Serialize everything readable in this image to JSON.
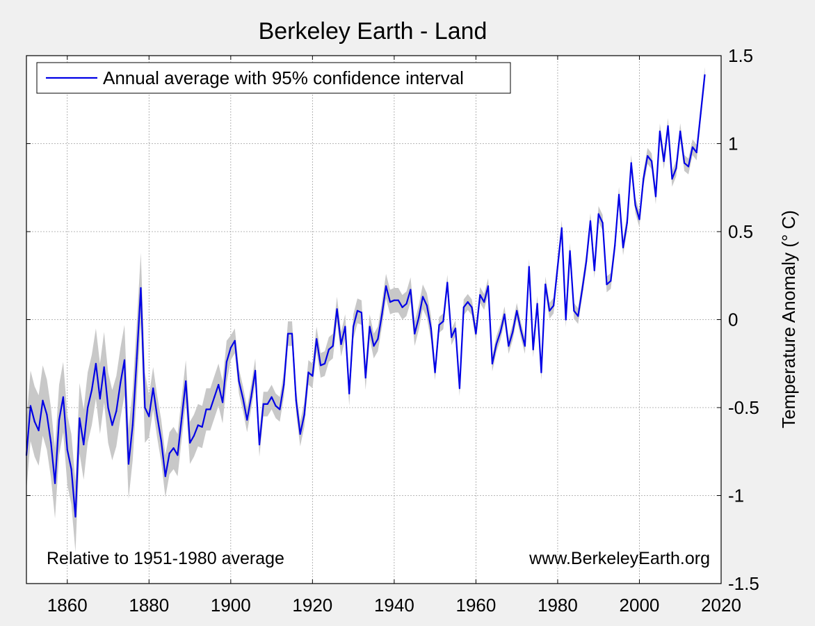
{
  "chart_data": {
    "type": "line",
    "title": "Berkeley Earth - Land",
    "xlabel": "",
    "ylabel": "Temperature Anomaly (° C)",
    "xlim": [
      1850,
      2020
    ],
    "ylim": [
      -1.5,
      1.5
    ],
    "x_ticks": [
      1860,
      1880,
      1900,
      1920,
      1940,
      1960,
      1980,
      2000,
      2020
    ],
    "y_ticks": [
      1.5,
      1,
      0.5,
      0,
      -0.5,
      -1,
      -1.5
    ],
    "x_tick_labels": [
      "1860",
      "1880",
      "1900",
      "1920",
      "1940",
      "1960",
      "1980",
      "2000",
      "2020"
    ],
    "y_tick_labels": [
      "1.5",
      "1",
      "0.5",
      "0",
      "-0.5",
      "-1",
      "-1.5"
    ],
    "grid": true,
    "legend": {
      "position": "top-left",
      "entries": [
        "Annual average with 95% confidence interval"
      ]
    },
    "annotations": {
      "bottom_left": "Relative to 1951-1980 average",
      "bottom_right": "www.BerkeleyEarth.org"
    },
    "colors": {
      "line": "#0000e6",
      "band": "#c8c8c8",
      "background": "#f0f0f0",
      "plot_bg": "#ffffff",
      "grid": "#a0a0a0"
    },
    "series": [
      {
        "name": "Annual average with 95% confidence interval",
        "x": [
          1850,
          1851,
          1852,
          1853,
          1854,
          1855,
          1856,
          1857,
          1858,
          1859,
          1860,
          1861,
          1862,
          1863,
          1864,
          1865,
          1866,
          1867,
          1868,
          1869,
          1870,
          1871,
          1872,
          1873,
          1874,
          1875,
          1876,
          1877,
          1878,
          1879,
          1880,
          1881,
          1882,
          1883,
          1884,
          1885,
          1886,
          1887,
          1888,
          1889,
          1890,
          1891,
          1892,
          1893,
          1894,
          1895,
          1896,
          1897,
          1898,
          1899,
          1900,
          1901,
          1902,
          1903,
          1904,
          1905,
          1906,
          1907,
          1908,
          1909,
          1910,
          1911,
          1912,
          1913,
          1914,
          1915,
          1916,
          1917,
          1918,
          1919,
          1920,
          1921,
          1922,
          1923,
          1924,
          1925,
          1926,
          1927,
          1928,
          1929,
          1930,
          1931,
          1932,
          1933,
          1934,
          1935,
          1936,
          1937,
          1938,
          1939,
          1940,
          1941,
          1942,
          1943,
          1944,
          1945,
          1946,
          1947,
          1948,
          1949,
          1950,
          1951,
          1952,
          1953,
          1954,
          1955,
          1956,
          1957,
          1958,
          1959,
          1960,
          1961,
          1962,
          1963,
          1964,
          1965,
          1966,
          1967,
          1968,
          1969,
          1970,
          1971,
          1972,
          1973,
          1974,
          1975,
          1976,
          1977,
          1978,
          1979,
          1980,
          1981,
          1982,
          1983,
          1984,
          1985,
          1986,
          1987,
          1988,
          1989,
          1990,
          1991,
          1992,
          1993,
          1994,
          1995,
          1996,
          1997,
          1998,
          1999,
          2000,
          2001,
          2002,
          2003,
          2004,
          2005,
          2006,
          2007,
          2008,
          2009,
          2010,
          2011,
          2012,
          2013,
          2014,
          2015,
          2016
        ],
        "values": [
          -0.77,
          -0.49,
          -0.58,
          -0.63,
          -0.46,
          -0.54,
          -0.7,
          -0.93,
          -0.57,
          -0.44,
          -0.74,
          -0.85,
          -1.12,
          -0.56,
          -0.71,
          -0.5,
          -0.4,
          -0.25,
          -0.45,
          -0.27,
          -0.5,
          -0.6,
          -0.52,
          -0.36,
          -0.23,
          -0.82,
          -0.6,
          -0.22,
          0.18,
          -0.5,
          -0.55,
          -0.39,
          -0.55,
          -0.69,
          -0.89,
          -0.76,
          -0.73,
          -0.77,
          -0.56,
          -0.35,
          -0.7,
          -0.66,
          -0.6,
          -0.61,
          -0.51,
          -0.51,
          -0.44,
          -0.37,
          -0.47,
          -0.24,
          -0.16,
          -0.12,
          -0.35,
          -0.45,
          -0.57,
          -0.44,
          -0.29,
          -0.71,
          -0.48,
          -0.48,
          -0.44,
          -0.49,
          -0.51,
          -0.37,
          -0.08,
          -0.08,
          -0.46,
          -0.65,
          -0.54,
          -0.3,
          -0.32,
          -0.11,
          -0.26,
          -0.25,
          -0.17,
          -0.15,
          0.06,
          -0.14,
          -0.04,
          -0.42,
          -0.04,
          0.05,
          0.04,
          -0.33,
          -0.04,
          -0.15,
          -0.11,
          0.03,
          0.19,
          0.1,
          0.11,
          0.11,
          0.07,
          0.09,
          0.17,
          -0.08,
          0.01,
          0.13,
          0.08,
          -0.05,
          -0.3,
          -0.03,
          -0.01,
          0.21,
          -0.1,
          -0.05,
          -0.39,
          0.07,
          0.1,
          0.07,
          -0.08,
          0.14,
          0.1,
          0.19,
          -0.25,
          -0.14,
          -0.07,
          0.03,
          -0.15,
          -0.07,
          0.05,
          -0.06,
          -0.15,
          0.3,
          -0.17,
          0.09,
          -0.3,
          0.2,
          0.05,
          0.08,
          0.3,
          0.52,
          0.0,
          0.39,
          0.05,
          0.02,
          0.17,
          0.33,
          0.56,
          0.28,
          0.6,
          0.55,
          0.2,
          0.22,
          0.42,
          0.71,
          0.41,
          0.55,
          0.89,
          0.65,
          0.57,
          0.8,
          0.93,
          0.9,
          0.7,
          1.07,
          0.9,
          1.1,
          0.8,
          0.86,
          1.07,
          0.89,
          0.87,
          0.98,
          0.95,
          1.17,
          1.39
        ]
      }
    ],
    "uncertainty_halfwidth_by_period": [
      {
        "from": 1850,
        "to": 1879,
        "halfwidth": 0.2
      },
      {
        "from": 1880,
        "to": 1899,
        "halfwidth": 0.12
      },
      {
        "from": 1900,
        "to": 1949,
        "halfwidth": 0.07
      },
      {
        "from": 1950,
        "to": 2016,
        "halfwidth": 0.045
      }
    ]
  }
}
